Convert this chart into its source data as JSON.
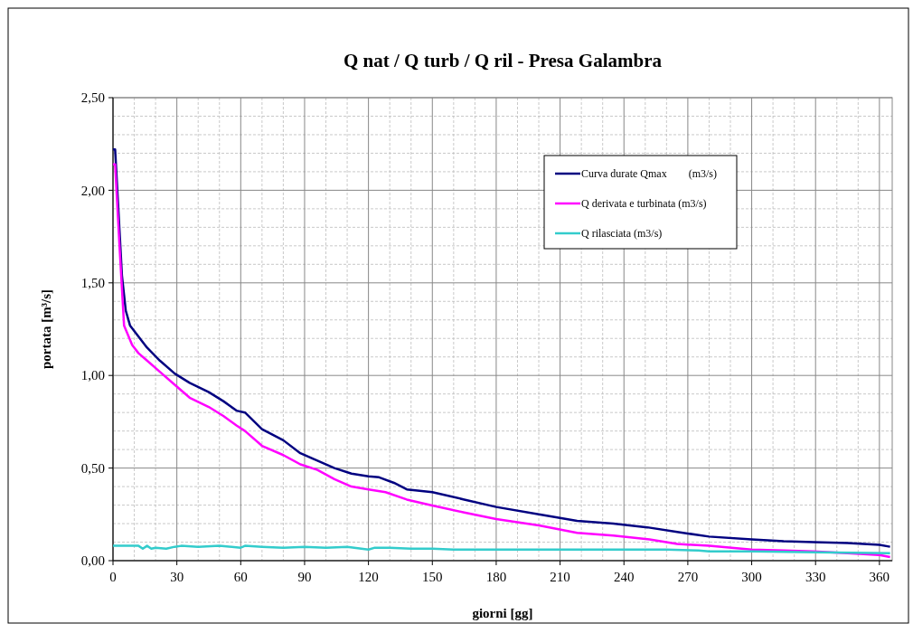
{
  "chart_data": {
    "type": "line",
    "title": "Q nat / Q turb / Q ril - Presa Galambra",
    "xlabel": "giorni [gg]",
    "ylabel": "portata [m³/s]",
    "xlim": [
      0,
      366
    ],
    "xticks": [
      0,
      30,
      60,
      90,
      120,
      150,
      180,
      210,
      240,
      270,
      300,
      330,
      360
    ],
    "ylim": [
      0,
      2.5
    ],
    "yticks": [
      {
        "value": 0,
        "label": "0,00"
      },
      {
        "value": 0.5,
        "label": "0,50"
      },
      {
        "value": 1,
        "label": "1,00"
      },
      {
        "value": 1.5,
        "label": "1,50"
      },
      {
        "value": 2,
        "label": "2,00"
      },
      {
        "value": 2.5,
        "label": "2,50"
      }
    ],
    "grid": true,
    "legend": "top right",
    "marker": "none",
    "line_style": "solid",
    "series": [
      {
        "name": "Curva durate Qmax        (m3/s)",
        "color": "#000080",
        "x": [
          0,
          1,
          2.7,
          4.2,
          6,
          8,
          12,
          16,
          22,
          29,
          36,
          45,
          52,
          58,
          62,
          70,
          80,
          88,
          96,
          104,
          112,
          120,
          125,
          132,
          138,
          150,
          165,
          180,
          200,
          218,
          235,
          251,
          265,
          280,
          300,
          315,
          329,
          345,
          360,
          365
        ],
        "values": [
          2.22,
          2.22,
          1.86,
          1.54,
          1.35,
          1.27,
          1.21,
          1.15,
          1.08,
          1.01,
          0.96,
          0.91,
          0.86,
          0.81,
          0.8,
          0.71,
          0.65,
          0.58,
          0.54,
          0.5,
          0.47,
          0.455,
          0.45,
          0.42,
          0.385,
          0.37,
          0.33,
          0.29,
          0.25,
          0.215,
          0.2,
          0.18,
          0.155,
          0.13,
          0.115,
          0.105,
          0.1,
          0.095,
          0.085,
          0.075
        ]
      },
      {
        "name": "Q derivata e turbinata (m3/s)",
        "color": "#ff00ff",
        "x": [
          0,
          1,
          3,
          5.2,
          9,
          12,
          16,
          22,
          29,
          36,
          45,
          52,
          58,
          62,
          70,
          80,
          88,
          96,
          104,
          112,
          120,
          128,
          138,
          149,
          165,
          180,
          200,
          218,
          235,
          252,
          265,
          280,
          300,
          315,
          329,
          345,
          360,
          365
        ],
        "values": [
          2.14,
          2.14,
          1.71,
          1.27,
          1.165,
          1.12,
          1.08,
          1.02,
          0.95,
          0.88,
          0.83,
          0.78,
          0.73,
          0.7,
          0.62,
          0.57,
          0.52,
          0.49,
          0.44,
          0.4,
          0.385,
          0.37,
          0.33,
          0.3,
          0.26,
          0.225,
          0.19,
          0.15,
          0.135,
          0.115,
          0.09,
          0.08,
          0.06,
          0.055,
          0.05,
          0.04,
          0.03,
          0.02
        ]
      },
      {
        "name": "Q rilasciata (m3/s)",
        "color": "#33cccc",
        "x": [
          0,
          12,
          14,
          16,
          18,
          20,
          25,
          29,
          32,
          40,
          50,
          60,
          62,
          70,
          80,
          90,
          100,
          110,
          120,
          123,
          130,
          140,
          150,
          160,
          180,
          200,
          220,
          240,
          260,
          275,
          280,
          300,
          330,
          365
        ],
        "values": [
          0.08,
          0.08,
          0.065,
          0.08,
          0.065,
          0.07,
          0.065,
          0.075,
          0.08,
          0.075,
          0.08,
          0.07,
          0.08,
          0.075,
          0.07,
          0.075,
          0.07,
          0.075,
          0.06,
          0.07,
          0.07,
          0.065,
          0.065,
          0.06,
          0.06,
          0.06,
          0.06,
          0.06,
          0.06,
          0.055,
          0.05,
          0.05,
          0.045,
          0.04
        ]
      }
    ]
  }
}
